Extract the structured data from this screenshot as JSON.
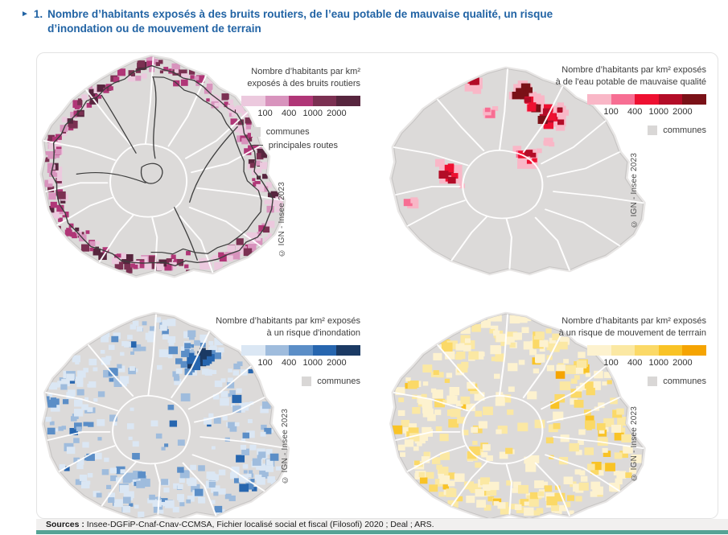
{
  "figure": {
    "marker": "►",
    "number": "1.",
    "title_line1": "Nombre d’habitants exposés à des bruits routiers, de l’eau potable de mauvaise qualité, un risque",
    "title_line2": "d’inondation ou de mouvement de terrain",
    "title_color": "#2163a4"
  },
  "maps": [
    {
      "name": "bruits-routiers",
      "legend_title_line1": "Nombre d’habitants par km²",
      "legend_title_line2": "exposés à des bruits routiers",
      "scale_ticks": [
        "100",
        "400",
        "1000",
        "2000"
      ],
      "scale_colors": [
        "#ecc9de",
        "#d893bd",
        "#b03677",
        "#7b3052",
        "#57253e"
      ],
      "legend_items": [
        {
          "label": "communes"
        },
        {
          "label": "principales routes"
        }
      ],
      "commune_fill": "#dcdad9",
      "roads_color": "#3d3d3d",
      "credit": "© IGN - Insee 2023"
    },
    {
      "name": "eau-potable",
      "legend_title_line1": "Nombre d’habitants par km² exposés",
      "legend_title_line2": "à de l'eau potable de mauvaise qualité",
      "scale_ticks": [
        "100",
        "400",
        "1000",
        "2000"
      ],
      "scale_colors": [
        "#f9b7c7",
        "#f76e93",
        "#ee1031",
        "#b30c27",
        "#7a1117"
      ],
      "legend_items": [
        {
          "label": "communes"
        }
      ],
      "commune_fill": "#dcdad9",
      "credit": "© IGN - Insee 2023"
    },
    {
      "name": "inondation",
      "legend_title_line1": "Nombre d’habitants par km² exposés",
      "legend_title_line2": "à un risque d'inondation",
      "scale_ticks": [
        "100",
        "400",
        "1000",
        "2000"
      ],
      "scale_colors": [
        "#dbe7f4",
        "#9fbcdd",
        "#5b8ec7",
        "#2766af",
        "#1b3a64"
      ],
      "legend_items": [
        {
          "label": "communes"
        }
      ],
      "commune_fill": "#dcdad9",
      "credit": "© IGN - Insee 2023"
    },
    {
      "name": "mouvement-terrain",
      "legend_title_line1": "Nombre d’habitants par km² exposés",
      "legend_title_line2": "à un risque de mouvement de terrrain",
      "scale_ticks": [
        "100",
        "400",
        "1000",
        "2000"
      ],
      "scale_colors": [
        "#fdf2cf",
        "#fbe8a3",
        "#fbd967",
        "#f9c326",
        "#f5a402"
      ],
      "legend_items": [
        {
          "label": "communes"
        }
      ],
      "commune_fill": "#dcdad9",
      "credit": "© IGN - Insee 2023"
    }
  ],
  "legend_misc": {
    "communes_swatch": "#d9d7d6",
    "routes_line_color": "#4a4a4a"
  },
  "footer": {
    "sources_label": "Sources :",
    "sources_text": " Insee-DGFiP-Cnaf-Cnav-CCMSA, Fichier localisé social et fiscal (Filosofi) 2020 ; Deal ; ARS.",
    "rule_color": "#55a395"
  }
}
